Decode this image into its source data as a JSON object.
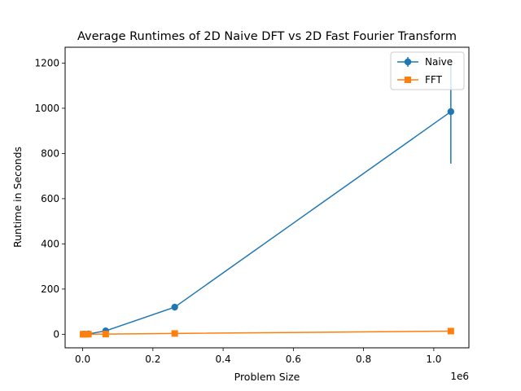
{
  "chart_data": {
    "type": "line",
    "title": "Average Runtimes of 2D Naive DFT vs 2D Fast Fourier Transform",
    "xlabel": "Problem Size",
    "ylabel": "Runtime in Seconds",
    "x_offset_label": "1e6",
    "xlim": [
      -50000,
      1100000
    ],
    "ylim": [
      -60,
      1270
    ],
    "xticks": [
      0,
      200000,
      400000,
      600000,
      800000,
      1000000
    ],
    "xtick_labels": [
      "0.0",
      "0.2",
      "0.4",
      "0.6",
      "0.8",
      "1.0"
    ],
    "yticks": [
      0,
      200,
      400,
      600,
      800,
      1000,
      1200
    ],
    "ytick_labels": [
      "0",
      "200",
      "400",
      "600",
      "800",
      "1000",
      "1200"
    ],
    "grid": false,
    "legend_position": "top-right",
    "series": [
      {
        "name": "Naive",
        "color": "#1f77b4",
        "marker": "circle",
        "x": [
          1024,
          4096,
          16384,
          65536,
          262144,
          1048576
        ],
        "y": [
          0.1,
          0.5,
          1.5,
          15,
          120,
          985
        ],
        "err": [
          0,
          0,
          0.5,
          3,
          15,
          230
        ]
      },
      {
        "name": "FFT",
        "color": "#ff7f0e",
        "marker": "square",
        "x": [
          1024,
          4096,
          16384,
          65536,
          262144,
          1048576
        ],
        "y": [
          0.02,
          0.05,
          0.2,
          0.8,
          3.5,
          14
        ],
        "err": [
          0,
          0,
          0,
          0,
          0,
          0
        ]
      }
    ]
  }
}
